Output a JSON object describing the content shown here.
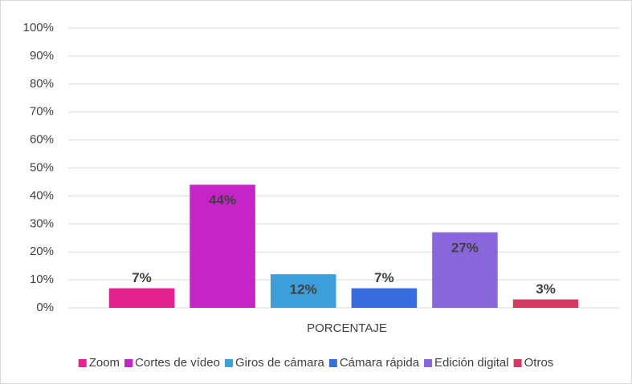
{
  "chart_data": {
    "type": "bar",
    "categories": [
      "PORCENTAJE"
    ],
    "series": [
      {
        "name": "Zoom",
        "color": "#e4218c",
        "values": [
          7
        ],
        "value_labels": [
          "7%"
        ]
      },
      {
        "name": "Cortes de vídeo",
        "color": "#c623c9",
        "values": [
          44
        ],
        "value_labels": [
          "44%"
        ]
      },
      {
        "name": "Giros de cámara",
        "color": "#3d9fda",
        "values": [
          12
        ],
        "value_labels": [
          "12%"
        ]
      },
      {
        "name": "Cámara rápida",
        "color": "#386de0",
        "values": [
          7
        ],
        "value_labels": [
          "7%"
        ]
      },
      {
        "name": "Edición digital",
        "color": "#8866dc",
        "values": [
          27
        ],
        "value_labels": [
          "27%"
        ]
      },
      {
        "name": "Otros",
        "color": "#d6385f",
        "values": [
          3
        ],
        "value_labels": [
          "3%"
        ]
      }
    ],
    "ylim": [
      0,
      100
    ],
    "yticks": [
      {
        "value": 0,
        "label": "0%"
      },
      {
        "value": 10,
        "label": "10%"
      },
      {
        "value": 20,
        "label": "20%"
      },
      {
        "value": 30,
        "label": "30%"
      },
      {
        "value": 40,
        "label": "40%"
      },
      {
        "value": 50,
        "label": "50%"
      },
      {
        "value": 60,
        "label": "60%"
      },
      {
        "value": 70,
        "label": "70%"
      },
      {
        "value": 80,
        "label": "80%"
      },
      {
        "value": 90,
        "label": "90%"
      },
      {
        "value": 100,
        "label": "100%"
      }
    ],
    "grid": true,
    "legend": "bottom"
  }
}
